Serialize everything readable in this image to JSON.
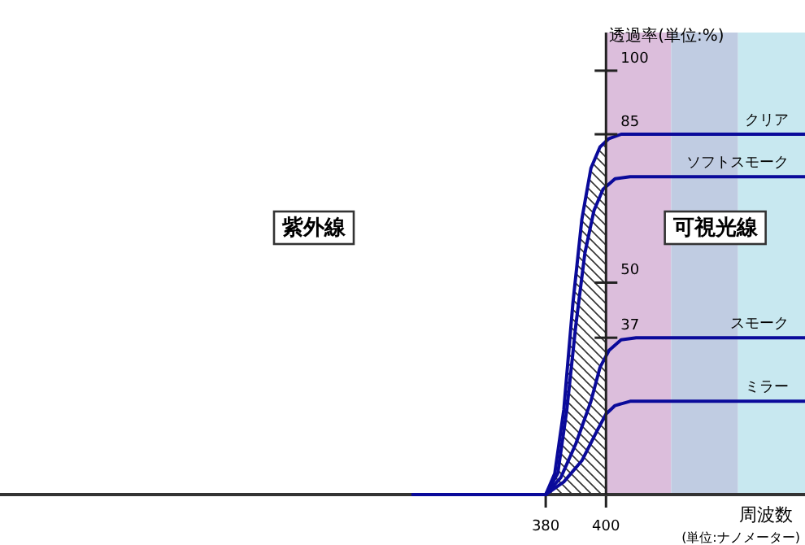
{
  "chart_data": {
    "type": "line",
    "ylabel": "透過率(単位:%)",
    "xlabel": "周波数",
    "xlim": [
      199,
      466
    ],
    "ylim": [
      0,
      109
    ],
    "xticks": [
      380,
      400
    ],
    "yticks": [
      100,
      85,
      50,
      37
    ],
    "line_style": "solid",
    "bands": [
      {
        "axis": "x",
        "from": 380,
        "to": 400,
        "color": "#333333"
      },
      {
        "axis": "x",
        "from": 400,
        "to": 421.6,
        "color": "#dcbedc"
      },
      {
        "axis": "x",
        "from": 421.6,
        "to": 443.8,
        "color": "#c0cce2"
      },
      {
        "axis": "x",
        "from": 443.8,
        "to": 466,
        "color": "#c8e8f0"
      }
    ],
    "annotations": [
      "紫外線",
      "可視光線",
      "(単位:ナノメーター)"
    ],
    "series": [
      {
        "name": "クリア",
        "color": "#0a0a9a",
        "x": [
          336,
          380,
          383,
          386,
          389,
          392,
          395,
          398,
          401,
          405,
          466
        ],
        "values": [
          0,
          0,
          5,
          20,
          45,
          65,
          77,
          82,
          84,
          85,
          85
        ]
      },
      {
        "name": "ソフトスモーク",
        "color": "#0a0a9a",
        "x": [
          336,
          380,
          384,
          387,
          390,
          393,
          396,
          399,
          403,
          408,
          466
        ],
        "values": [
          0,
          0,
          5,
          20,
          40,
          57,
          67,
          72,
          74.5,
          75,
          75
        ]
      },
      {
        "name": "スモーク",
        "color": "#0a0a9a",
        "x": [
          336,
          380,
          385,
          390,
          395,
          398,
          401,
          405,
          410,
          466
        ],
        "values": [
          0,
          0,
          4,
          12,
          22,
          30,
          34,
          36.5,
          37,
          37
        ]
      },
      {
        "name": "ミラー",
        "color": "#0a0a9a",
        "x": [
          336,
          380,
          386,
          392,
          397,
          400,
          403,
          408,
          466
        ],
        "values": [
          0,
          0,
          3,
          8,
          15,
          19,
          21,
          22,
          22
        ]
      }
    ]
  }
}
